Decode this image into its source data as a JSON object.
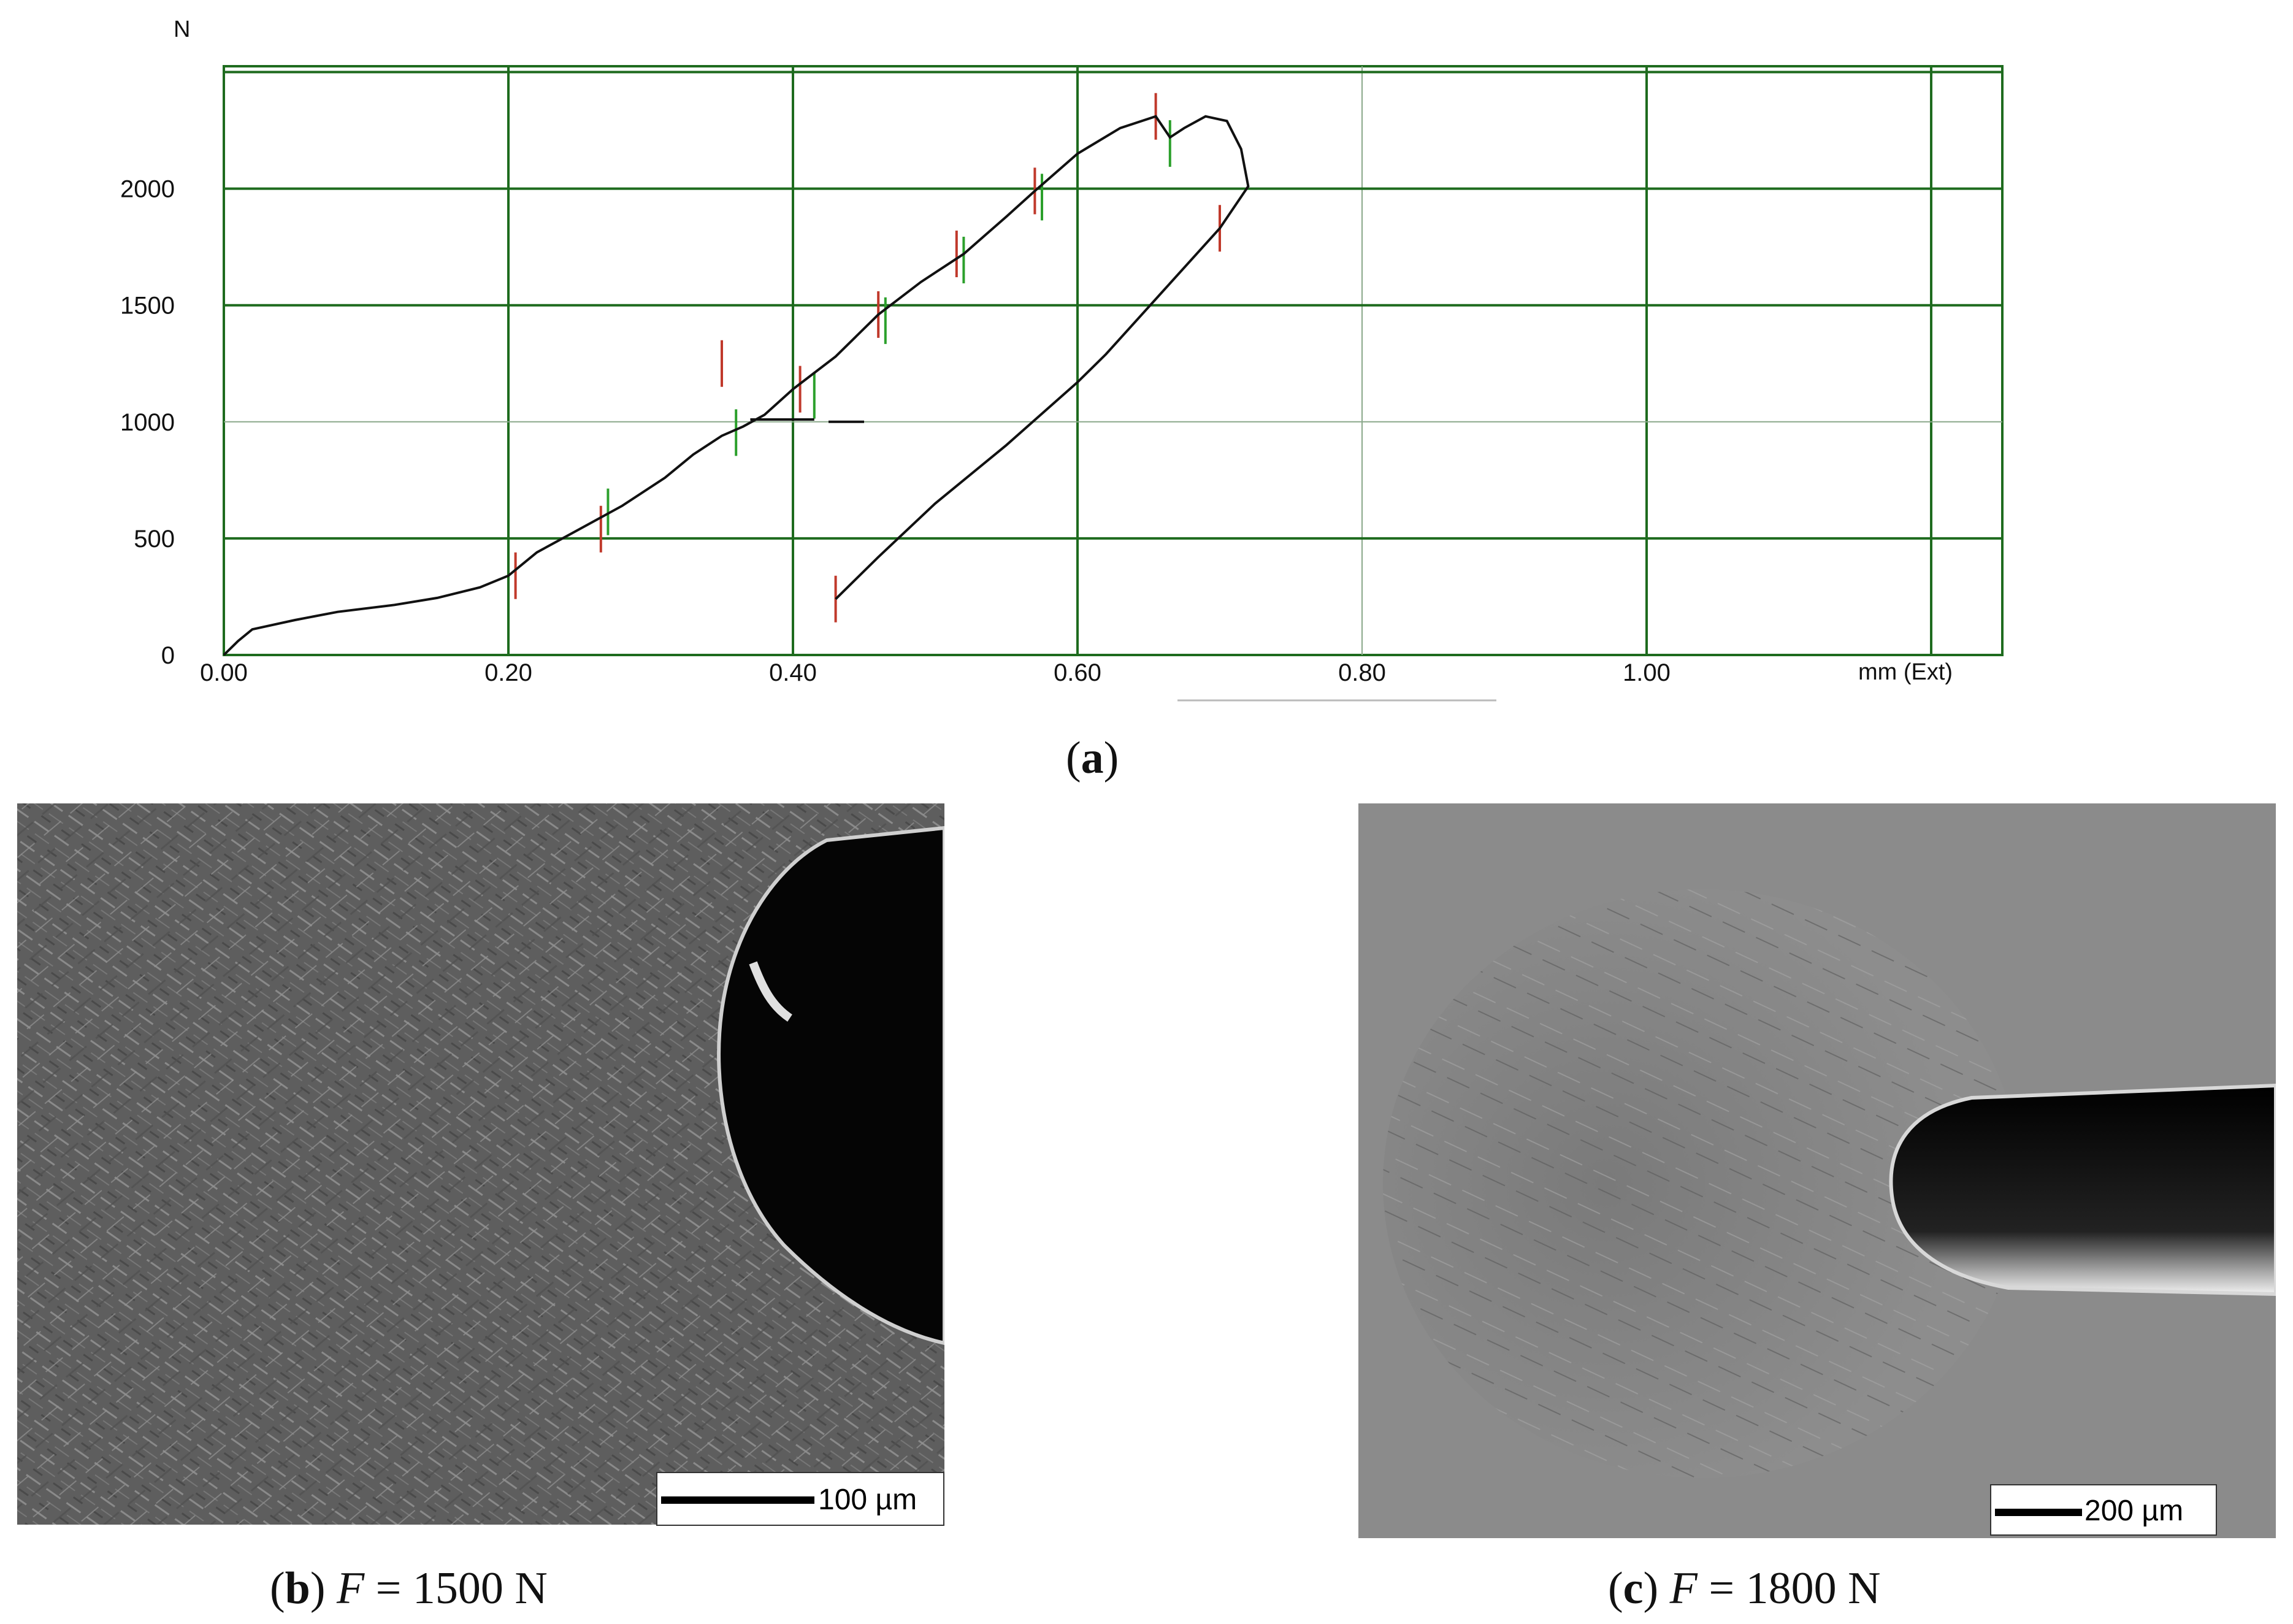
{
  "chart_data": {
    "type": "line",
    "title": "",
    "ylabel": "N",
    "xlabel": "mm (Ext)",
    "x_ticks": [
      "0.00",
      "0.20",
      "0.40",
      "0.60",
      "0.80",
      "1.00"
    ],
    "y_ticks": [
      "0",
      "500",
      "1000",
      "1500",
      "2000"
    ],
    "xlim": [
      0,
      1.25
    ],
    "ylim": [
      0,
      2525
    ],
    "grid": true,
    "series": [
      {
        "values_xy": [
          [
            0.0,
            0
          ],
          [
            0.01,
            60
          ],
          [
            0.02,
            110
          ],
          [
            0.05,
            150
          ],
          [
            0.08,
            185
          ],
          [
            0.12,
            215
          ],
          [
            0.15,
            245
          ],
          [
            0.18,
            290
          ],
          [
            0.2,
            340
          ],
          [
            0.22,
            440
          ],
          [
            0.25,
            540
          ],
          [
            0.28,
            640
          ],
          [
            0.31,
            760
          ],
          [
            0.33,
            860
          ],
          [
            0.35,
            940
          ],
          [
            0.365,
            980
          ],
          [
            0.38,
            1030
          ],
          [
            0.4,
            1140
          ],
          [
            0.43,
            1280
          ],
          [
            0.46,
            1460
          ],
          [
            0.49,
            1600
          ],
          [
            0.52,
            1720
          ],
          [
            0.55,
            1880
          ],
          [
            0.57,
            1990
          ],
          [
            0.6,
            2150
          ],
          [
            0.63,
            2260
          ],
          [
            0.655,
            2310
          ],
          [
            0.665,
            2220
          ],
          [
            0.675,
            2260
          ],
          [
            0.69,
            2310
          ],
          [
            0.705,
            2290
          ],
          [
            0.715,
            2170
          ],
          [
            0.72,
            2010
          ],
          [
            0.7,
            1830
          ],
          [
            0.66,
            1560
          ],
          [
            0.62,
            1290
          ],
          [
            0.6,
            1170
          ],
          [
            0.55,
            900
          ],
          [
            0.5,
            650
          ],
          [
            0.46,
            420
          ],
          [
            0.43,
            240
          ]
        ]
      }
    ],
    "markers": {
      "red_x": [
        0.205,
        0.265,
        0.35,
        0.405,
        0.46,
        0.515,
        0.57,
        0.655,
        0.7,
        0.43
      ],
      "green_x": [
        0.27,
        0.36,
        0.415,
        0.465,
        0.52,
        0.575,
        0.665
      ]
    },
    "colors": {
      "grid": "#1e6b1e",
      "curve": "#111111",
      "red": "#c0392b",
      "green": "#2ca02c"
    }
  },
  "captions": {
    "a": {
      "letter": "a"
    },
    "b": {
      "letter": "b",
      "var": "F",
      "text": " = 1500 N"
    },
    "c": {
      "letter": "c",
      "var": "F",
      "text": " = 1800 N"
    }
  },
  "scale_bars": {
    "b": "100 µm",
    "c": "200 µm"
  }
}
